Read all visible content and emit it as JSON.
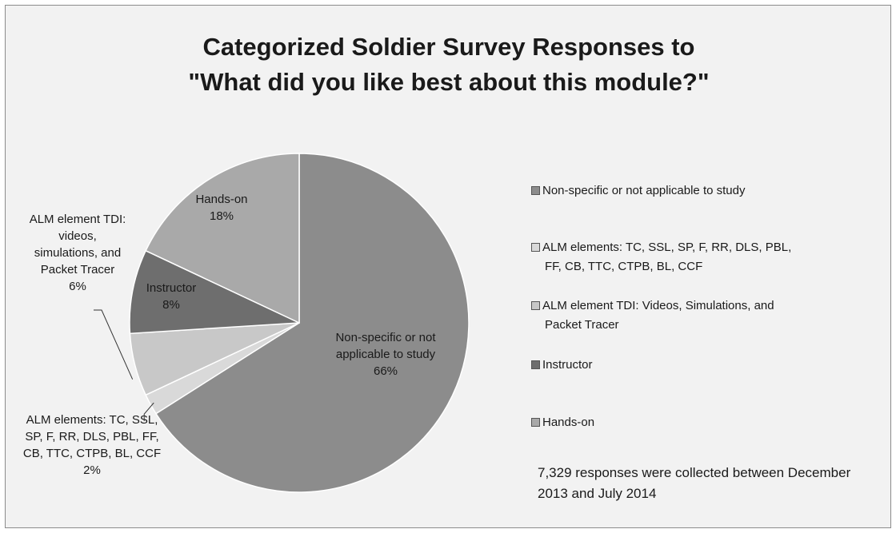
{
  "chart_data": {
    "type": "pie",
    "title_lines": [
      "Categorized Soldier Survey Responses to",
      "\"What did you like best about this module?\""
    ],
    "slices": [
      {
        "legend": "Non-specific or not applicable to study",
        "label_lines": [
          "Non-specific or not",
          "applicable to study",
          "66%"
        ],
        "value": 66,
        "color": "#8c8c8c"
      },
      {
        "legend": "ALM elements: TC, SSL, SP, F, RR, DLS, PBL, FF, CB, TTC, CTPB, BL, CCF",
        "label_lines": [
          "ALM elements: TC, SSL,",
          "SP, F, RR, DLS, PBL, FF,",
          "CB, TTC, CTPB, BL, CCF",
          "2%"
        ],
        "value": 2,
        "color": "#d9d9d9"
      },
      {
        "legend": "ALM element TDI: Videos, Simulations, and Packet Tracer",
        "label_lines": [
          "ALM element TDI:",
          "videos,",
          "simulations, and",
          "Packet Tracer",
          "6%"
        ],
        "value": 6,
        "color": "#c8c8c8"
      },
      {
        "legend": "Instructor",
        "label_lines": [
          "Instructor",
          "8%"
        ],
        "value": 8,
        "color": "#6e6e6e"
      },
      {
        "legend": "Hands-on",
        "label_lines": [
          "Hands-on",
          "18%"
        ],
        "value": 18,
        "color": "#a9a9a9"
      }
    ]
  },
  "legend_items": [
    {
      "lines": [
        "Non-specific or not applicable to study"
      ],
      "color": "#8c8c8c"
    },
    {
      "lines": [
        "ALM elements: TC, SSL, SP, F, RR, DLS, PBL,",
        "FF, CB, TTC, CTPB, BL, CCF"
      ],
      "color": "#d9d9d9"
    },
    {
      "lines": [
        "ALM element TDI: Videos, Simulations, and",
        "Packet Tracer"
      ],
      "color": "#c8c8c8"
    },
    {
      "lines": [
        "Instructor"
      ],
      "color": "#6e6e6e"
    },
    {
      "lines": [
        "Hands-on"
      ],
      "color": "#a9a9a9"
    }
  ],
  "note": "7,329 responses were collected between December 2013 and July 2014"
}
